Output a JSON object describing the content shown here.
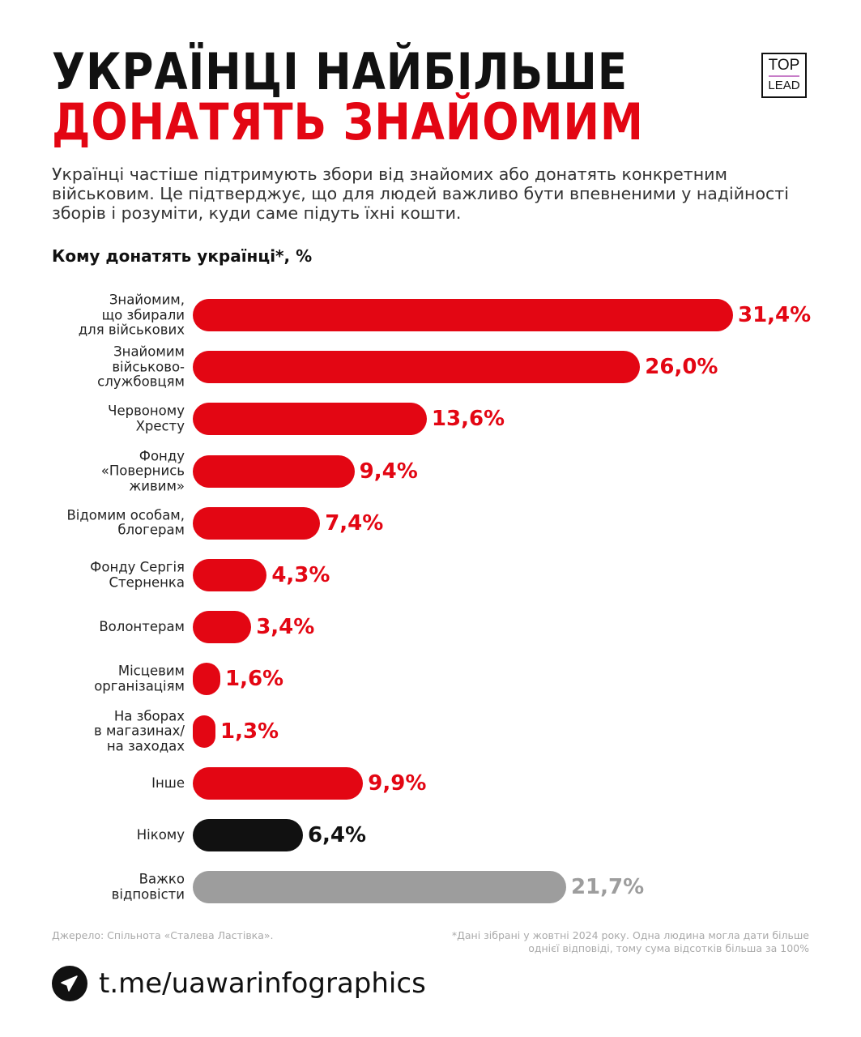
{
  "title_line1": "УКРАЇНЦІ НАЙБІЛЬШЕ",
  "title_line2": "ДОНАТЯТЬ ЗНАЙОМИМ",
  "logo": {
    "top": "TOP",
    "bottom": "LEAD"
  },
  "subtitle": "Українці частіше підтримують збори від знайомих або донатять конкретним військовим. Це підтверджує, що для людей важливо бути впевненими у надійності зборів і розуміти, куди саме підуть їхні кошти.",
  "chart_data": {
    "type": "bar",
    "orientation": "horizontal",
    "title": "Кому донатять українці*, %",
    "categories": [
      "Знайомим, що збирали для військових",
      "Знайомим військово-службовцям",
      "Червоному Хресту",
      "Фонду «Повернись живим»",
      "Відомим особам, блогерам",
      "Фонду Сергія Стерненка",
      "Волонтерам",
      "Місцевим організаціям",
      "На зборах в магазинах/ на заходах",
      "Інше",
      "Нікому",
      "Важко відповісти"
    ],
    "label_lines": [
      [
        "Знайомим,",
        "що збирали",
        "для військових"
      ],
      [
        "Знайомим",
        "військово-",
        "службовцям"
      ],
      [
        "Червоному",
        "Хресту"
      ],
      [
        "Фонду",
        "«Повернись",
        "живим»"
      ],
      [
        "Відомим особам,",
        "блогерам"
      ],
      [
        "Фонду Сергія",
        "Стерненка"
      ],
      [
        "Волонтерам"
      ],
      [
        "Місцевим",
        "організаціям"
      ],
      [
        "На зборах",
        "в магазинах/",
        "на заходах"
      ],
      [
        "Інше"
      ],
      [
        "Нікому"
      ],
      [
        "Важко",
        "відповісти"
      ]
    ],
    "values": [
      31.4,
      26.0,
      13.6,
      9.4,
      7.4,
      4.3,
      3.4,
      1.6,
      1.3,
      9.9,
      6.4,
      21.7
    ],
    "value_labels": [
      "31,4%",
      "26,0%",
      "13,6%",
      "9,4%",
      "7,4%",
      "4,3%",
      "3,4%",
      "1,6%",
      "1,3%",
      "9,9%",
      "6,4%",
      "21,7%"
    ],
    "colors": [
      "#e30613",
      "#e30613",
      "#e30613",
      "#e30613",
      "#e30613",
      "#e30613",
      "#e30613",
      "#e30613",
      "#e30613",
      "#e30613",
      "#111111",
      "#9d9d9d"
    ],
    "xlim": [
      0,
      31.4
    ]
  },
  "source": "Джерело: Спільнота «Сталева Ластівка».",
  "footnote": "*Дані зібрані у жовтні 2024 року. Одна людина могла дати більше однієї відповіді, тому сума відсотків більша за 100%",
  "telegram_url": "t.me/uawarinfographics"
}
